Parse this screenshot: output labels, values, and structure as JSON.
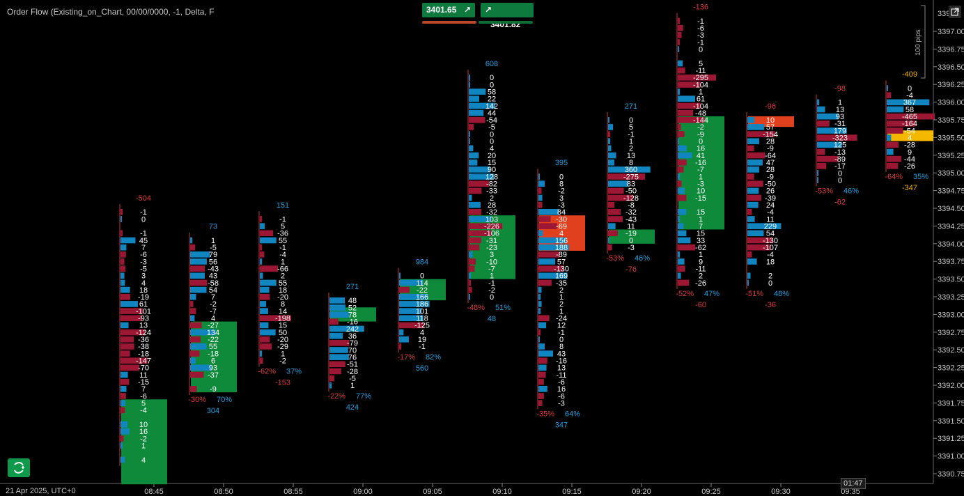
{
  "title": "Order Flow (Existing_on_Chart, 00/00/0000, -1, Delta, F",
  "bid_price": "3401.65",
  "ask_price": "3401.82",
  "pips_label": "100 pips",
  "clock": "01:47",
  "date_label": "21 Apr 2025, UTC+0",
  "colors": {
    "pos": "#1ba1e2",
    "neg": "#b0183a",
    "posbar": "#1185c0",
    "negbar": "#9c1733",
    "poc_green": "#0f8a3a",
    "sell_red": "#e0401e",
    "buy_green": "#1a9e4c"
  },
  "chart_data": {
    "type": "footprint",
    "xlabel": "",
    "ylabel": "",
    "ylim": [
      3390.625,
      3397.5
    ],
    "x_ticks": [
      "08:45",
      "08:50",
      "08:55",
      "09:00",
      "09:05",
      "09:10",
      "09:15",
      "09:20",
      "09:25",
      "09:30",
      "09:35"
    ],
    "y_ticks": [
      "3397.00",
      "3396.75",
      "3396.50",
      "3396.25",
      "3396.00",
      "3395.75",
      "3395.50",
      "3395.25",
      "3395.00",
      "3394.75",
      "3394.50",
      "3394.25",
      "3394.00",
      "3393.75",
      "3393.50",
      "3393.25",
      "3393.00",
      "3392.75",
      "3392.50",
      "3392.25",
      "3392.00",
      "3391.75",
      "3391.50",
      "3391.25",
      "3391.00",
      "3390.75"
    ],
    "y_top_partial": "3397",
    "bars": [
      {
        "time": "08:45",
        "top_label": "-504",
        "top": 3394.5,
        "deltas": [
          -1,
          0,
          null,
          -1,
          45,
          7,
          -6,
          -3,
          -5,
          3,
          4,
          18,
          -19,
          61,
          -101,
          -93,
          13,
          -124,
          -36,
          -38,
          -18,
          -147,
          -70,
          11,
          -15,
          7,
          -6,
          5,
          -4,
          null,
          10,
          16,
          -2,
          1,
          null,
          4
        ],
        "pct_neg": "",
        "pct_pos": "",
        "total": "",
        "poc": {
          "from": 3391.8,
          "to": 3390.6,
          "color": "green"
        }
      },
      {
        "time": "08:50",
        "top_label": "73",
        "top": 3394.1,
        "deltas": [
          1,
          -5,
          79,
          56,
          -43,
          43,
          -58,
          54,
          7,
          -2,
          -7,
          4,
          -27,
          134,
          -22,
          55,
          -18,
          6,
          93,
          -37,
          null,
          -9
        ],
        "pct_neg": "-30%",
        "pct_pos": "70%",
        "total": "304",
        "poc": {
          "from": 3392.9,
          "to": 3391.9,
          "color": "green"
        }
      },
      {
        "time": "08:55",
        "top_label": "151",
        "top": 3394.4,
        "deltas": [
          -1,
          5,
          -36,
          55,
          -1,
          -4,
          1,
          -66,
          2,
          55,
          18,
          -20,
          8,
          14,
          -198,
          15,
          50,
          -20,
          -29,
          1,
          -2
        ],
        "pct_neg": "-62%",
        "pct_pos": "37%",
        "total": "-153",
        "poc": null
      },
      {
        "time": "09:00",
        "top_label": "271",
        "top": 3393.25,
        "deltas": [
          48,
          52,
          78,
          -16,
          242,
          36,
          -79,
          70,
          76,
          -51,
          -28,
          -5,
          1
        ],
        "pct_neg": "-22%",
        "pct_pos": "77%",
        "total": "424",
        "poc": {
          "from": 3393.1,
          "to": 3392.9,
          "color": "green"
        }
      },
      {
        "time": "09:05",
        "top_label": "984",
        "top": 3393.6,
        "deltas": [
          0,
          114,
          -22,
          166,
          186,
          101,
          118,
          -125,
          4,
          19,
          -1
        ],
        "pct_neg": "-17%",
        "pct_pos": "82%",
        "total": "560",
        "poc": {
          "from": 3393.5,
          "to": 3393.2,
          "color": "green"
        }
      },
      {
        "time": "09:10",
        "top_label": "608",
        "top": 3396.4,
        "deltas": [
          0,
          0,
          58,
          22,
          142,
          44,
          -54,
          -5,
          0,
          0,
          4,
          20,
          15,
          90,
          128,
          -82,
          -33,
          2,
          28,
          -32,
          103,
          -226,
          -106,
          -31,
          -23,
          3,
          -10,
          -7,
          1,
          -1,
          -2,
          0
        ],
        "pct_neg": "-48%",
        "pct_pos": "51%",
        "total": "48",
        "poc": {
          "from": 3394.4,
          "to": 3393.5,
          "color": "green"
        }
      },
      {
        "time": "09:15",
        "top_label": "395",
        "top": 3395.0,
        "deltas": [
          0,
          8,
          -2,
          3,
          -3,
          84,
          -30,
          -69,
          4,
          156,
          188,
          -89,
          57,
          -130,
          169,
          -35,
          2,
          1,
          2,
          1,
          -24,
          12,
          -1,
          0,
          8,
          43,
          -16,
          13,
          -11,
          -6,
          16,
          -6,
          -3
        ],
        "pct_neg": "-35%",
        "pct_pos": "64%",
        "total": "347",
        "poc": {
          "from": 3394.4,
          "to": 3393.9,
          "color": "orange"
        }
      },
      {
        "time": "09:20",
        "top_label": "271",
        "top": 3395.8,
        "deltas": [
          0,
          5,
          -1,
          1,
          2,
          13,
          8,
          360,
          -275,
          83,
          -50,
          -128,
          -8,
          -32,
          -43,
          11,
          -19,
          0,
          -3
        ],
        "pct_neg": "-53%",
        "pct_pos": "46%",
        "total": "-76",
        "poc": {
          "from": 3394.2,
          "to": 3394.0,
          "color": "green"
        }
      },
      {
        "time": "09:25",
        "top_label": "-136",
        "top": 3397.2,
        "deltas": [
          -1,
          -6,
          -3,
          -1,
          0,
          null,
          5,
          -11,
          -295,
          -104,
          1,
          61,
          -104,
          -48,
          -144,
          -2,
          -9,
          0,
          16,
          41,
          -16,
          -7,
          1,
          -3,
          10,
          -15,
          null,
          15,
          1,
          7,
          15,
          33,
          -62,
          1,
          9,
          -11,
          2,
          -26
        ],
        "pct_neg": "-52%",
        "pct_pos": "47%",
        "total": "-60",
        "poc": {
          "from": 3395.8,
          "to": 3394.2,
          "color": "green"
        }
      },
      {
        "time": "09:30",
        "top_label": "-96",
        "top": 3395.8,
        "deltas": [
          10,
          57,
          -154,
          28,
          -9,
          -64,
          47,
          28,
          -9,
          -50,
          26,
          -39,
          24,
          -4,
          11,
          229,
          54,
          -130,
          -107,
          -4,
          18,
          null,
          2,
          0
        ],
        "pct_neg": "-51%",
        "pct_pos": "48%",
        "total": "-36",
        "poc": {
          "from": 3395.8,
          "to": 3395.65,
          "color": "orange"
        }
      },
      {
        "time": "09:35",
        "top_label": "-98",
        "top": 3396.05,
        "deltas": [
          1,
          13,
          93,
          -31,
          179,
          -323,
          125,
          -13,
          -89,
          -17,
          0,
          0
        ],
        "pct_neg": "-53%",
        "pct_pos": "46%",
        "total": "-62",
        "poc": null
      },
      {
        "time": "09:40",
        "top_label": "-409",
        "top": 3396.25,
        "deltas": [
          0,
          -4,
          367,
          58,
          -465,
          -164,
          -54,
          4,
          -28,
          9,
          -44,
          -26
        ],
        "pct_neg": "-64%",
        "pct_pos": "35%",
        "total": "-347",
        "poc": {
          "from": 3395.6,
          "to": 3395.45,
          "color": "yellow"
        }
      }
    ]
  }
}
